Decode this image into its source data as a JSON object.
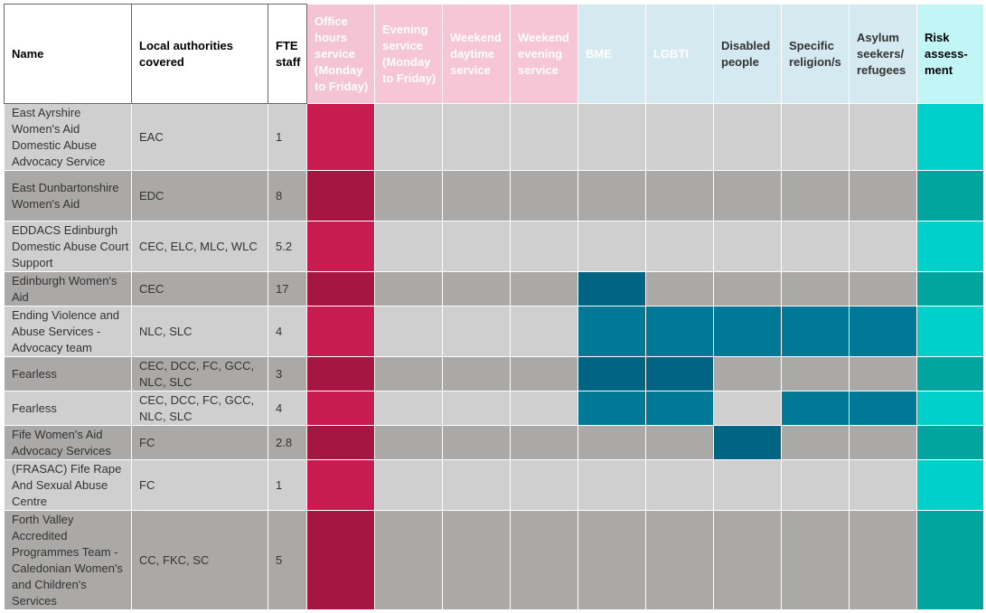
{
  "headers": {
    "name": "Name",
    "local": "Local authorities covered",
    "fte": "FTE staff",
    "office": "Office hours service (Monday to Friday)",
    "evening": "Evening service (Monday to Friday)",
    "wkd_day": "Weekend daytime service",
    "wkd_eve": "Weekend evening service",
    "bme": "BME",
    "lgbti": "LGBTI",
    "disabled": "Disabled people",
    "religion": "Specific religion/s",
    "asylum": "Asylum seekers/ refugees",
    "risk": "Risk assess-ment"
  },
  "colors": {
    "light_bg": "#d0cfcf",
    "dark_bg": "#aaa9a8",
    "office_light": "#c81b50",
    "office_dark": "#a51642",
    "risk_light": "#00d0ca",
    "risk_dark": "#00a59f",
    "blue_light": "#007896",
    "blue_dark": "#006482"
  },
  "rows": [
    {
      "name": "East Ayrshire Women's Aid Domestic Abuse Advocacy Service",
      "local": "EAC",
      "fte": "1",
      "shade": "light",
      "flags": [
        1,
        0,
        0,
        0,
        0,
        0,
        0,
        0,
        0,
        1
      ]
    },
    {
      "name": "East Dunbartonshire Women's Aid",
      "local": "EDC",
      "fte": "8",
      "shade": "dark",
      "flags": [
        1,
        0,
        0,
        0,
        0,
        0,
        0,
        0,
        0,
        1
      ]
    },
    {
      "name": "EDDACS Edinburgh Domestic Abuse Court Support",
      "local": "CEC, ELC, MLC, WLC",
      "fte": "5.2",
      "shade": "light",
      "flags": [
        1,
        0,
        0,
        0,
        0,
        0,
        0,
        0,
        0,
        1
      ]
    },
    {
      "name": "Edinburgh Women's Aid",
      "local": "CEC",
      "fte": "17",
      "shade": "dark",
      "flags": [
        1,
        0,
        0,
        0,
        1,
        0,
        0,
        0,
        0,
        1
      ]
    },
    {
      "name": "Ending Violence and Abuse Services - Advocacy team",
      "local": "NLC, SLC",
      "fte": "4",
      "shade": "light",
      "flags": [
        1,
        0,
        0,
        0,
        1,
        1,
        1,
        1,
        1,
        1
      ]
    },
    {
      "name": "Fearless",
      "local": "CEC, DCC, FC, GCC, NLC, SLC",
      "fte": "3",
      "shade": "dark",
      "flags": [
        1,
        0,
        0,
        0,
        1,
        1,
        0,
        0,
        0,
        1
      ]
    },
    {
      "name": "Fearless",
      "local": "CEC, DCC, FC, GCC, NLC, SLC",
      "fte": "4",
      "shade": "light",
      "flags": [
        1,
        0,
        0,
        0,
        1,
        1,
        0,
        1,
        1,
        1
      ]
    },
    {
      "name": "Fife Women's Aid Advocacy Services",
      "local": "FC",
      "fte": "2.8",
      "shade": "dark",
      "flags": [
        1,
        0,
        0,
        0,
        0,
        0,
        1,
        0,
        0,
        1
      ]
    },
    {
      "name": "(FRASAC) Fife Rape And Sexual Abuse Centre",
      "local": "FC",
      "fte": "1",
      "shade": "light",
      "flags": [
        1,
        0,
        0,
        0,
        0,
        0,
        0,
        0,
        0,
        1
      ]
    },
    {
      "name": "Forth Valley Accredited Programmes Team - Caledonian Women's and Children's Services",
      "local": "CC, FKC, SC",
      "fte": "5",
      "shade": "dark",
      "flags": [
        1,
        0,
        0,
        0,
        0,
        0,
        0,
        0,
        0,
        1
      ]
    }
  ]
}
